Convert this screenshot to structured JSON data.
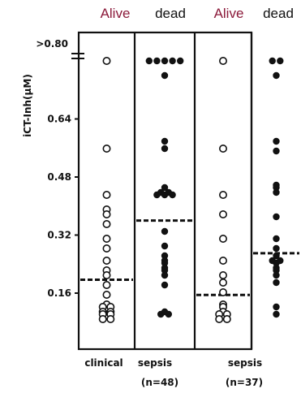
{
  "header": {
    "left_alive": "Alive",
    "left_dead": "dead",
    "right_alive": "Alive",
    "right_dead": "dead",
    "alive_color": "#8b1a3a",
    "dead_color": "#111111"
  },
  "chart_data": {
    "type": "scatter",
    "ylabel": "iCT-Inh(μM)",
    "y_ticks": [
      0.16,
      0.32,
      0.48,
      0.64
    ],
    "y_ticks_labels": [
      "0.16",
      "0.32",
      "0.48",
      "0.64"
    ],
    "y_break_label": ">0.80",
    "ylim": [
      0.06,
      0.82
    ],
    "groups": [
      {
        "group": "clinical sepsis (n=48)",
        "bottom_labels": [
          "clinical",
          "sepsis",
          "(n=48)"
        ],
        "alive": {
          "marker": "open",
          "mean": 0.197,
          "values": [
            0.8,
            0.56,
            0.43,
            0.39,
            0.38,
            0.35,
            0.31,
            0.28,
            0.25,
            0.22,
            0.21,
            0.18,
            0.155,
            0.13,
            0.12,
            0.12,
            0.11,
            0.11,
            0.1,
            0.1,
            0.09,
            0.09
          ]
        },
        "dead": {
          "marker": "filled",
          "mean": 0.36,
          "values": [
            0.8,
            0.8,
            0.8,
            0.8,
            0.8,
            0.76,
            0.58,
            0.56,
            0.45,
            0.44,
            0.43,
            0.44,
            0.43,
            0.43,
            0.33,
            0.29,
            0.26,
            0.25,
            0.24,
            0.23,
            0.22,
            0.21,
            0.18,
            0.11,
            0.1,
            0.1
          ]
        }
      },
      {
        "group": "sepsis (n=37)",
        "bottom_labels": [
          "sepsis",
          "(n=37)"
        ],
        "alive": {
          "marker": "open",
          "mean": 0.155,
          "values": [
            0.8,
            0.56,
            0.43,
            0.38,
            0.31,
            0.25,
            0.21,
            0.19,
            0.16,
            0.13,
            0.12,
            0.11,
            0.1,
            0.1,
            0.09,
            0.09
          ]
        },
        "dead": {
          "marker": "filled",
          "mean": 0.27,
          "values": [
            0.8,
            0.8,
            0.76,
            0.58,
            0.55,
            0.46,
            0.45,
            0.44,
            0.37,
            0.31,
            0.28,
            0.26,
            0.25,
            0.25,
            0.24,
            0.23,
            0.22,
            0.21,
            0.19,
            0.12,
            0.1
          ]
        }
      }
    ]
  }
}
